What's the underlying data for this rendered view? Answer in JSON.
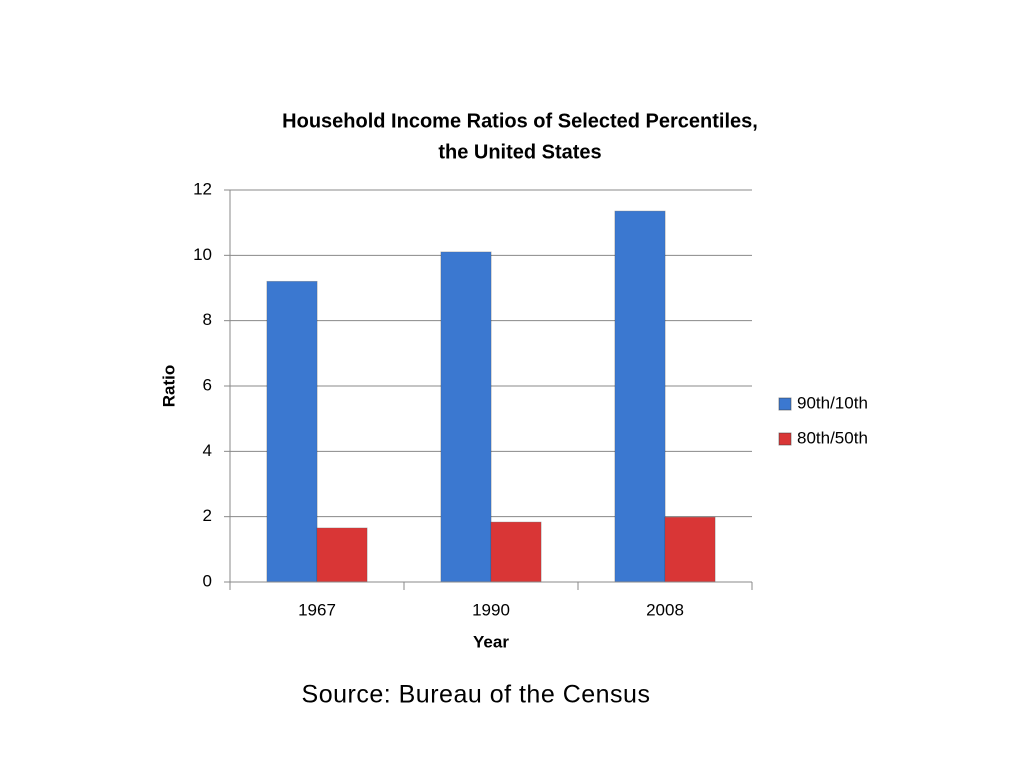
{
  "chart_data": {
    "type": "bar",
    "title": [
      "Household Income Ratios of Selected Percentiles,",
      "the United States"
    ],
    "x_label": "Year",
    "y_label": "Ratio",
    "categories": [
      "1967",
      "1990",
      "2008"
    ],
    "series": [
      {
        "name": "90th/10th",
        "color": "#3b78d0",
        "values": [
          9.2,
          10.1,
          11.35
        ]
      },
      {
        "name": "80th/50th",
        "color": "#d93636",
        "values": [
          1.65,
          1.83,
          1.98
        ]
      }
    ],
    "ylim": [
      0,
      12
    ],
    "yticks": [
      0,
      2,
      4,
      6,
      8,
      10,
      12
    ],
    "grid": true,
    "legend": "right",
    "source": "Source: Bureau of the Census"
  }
}
